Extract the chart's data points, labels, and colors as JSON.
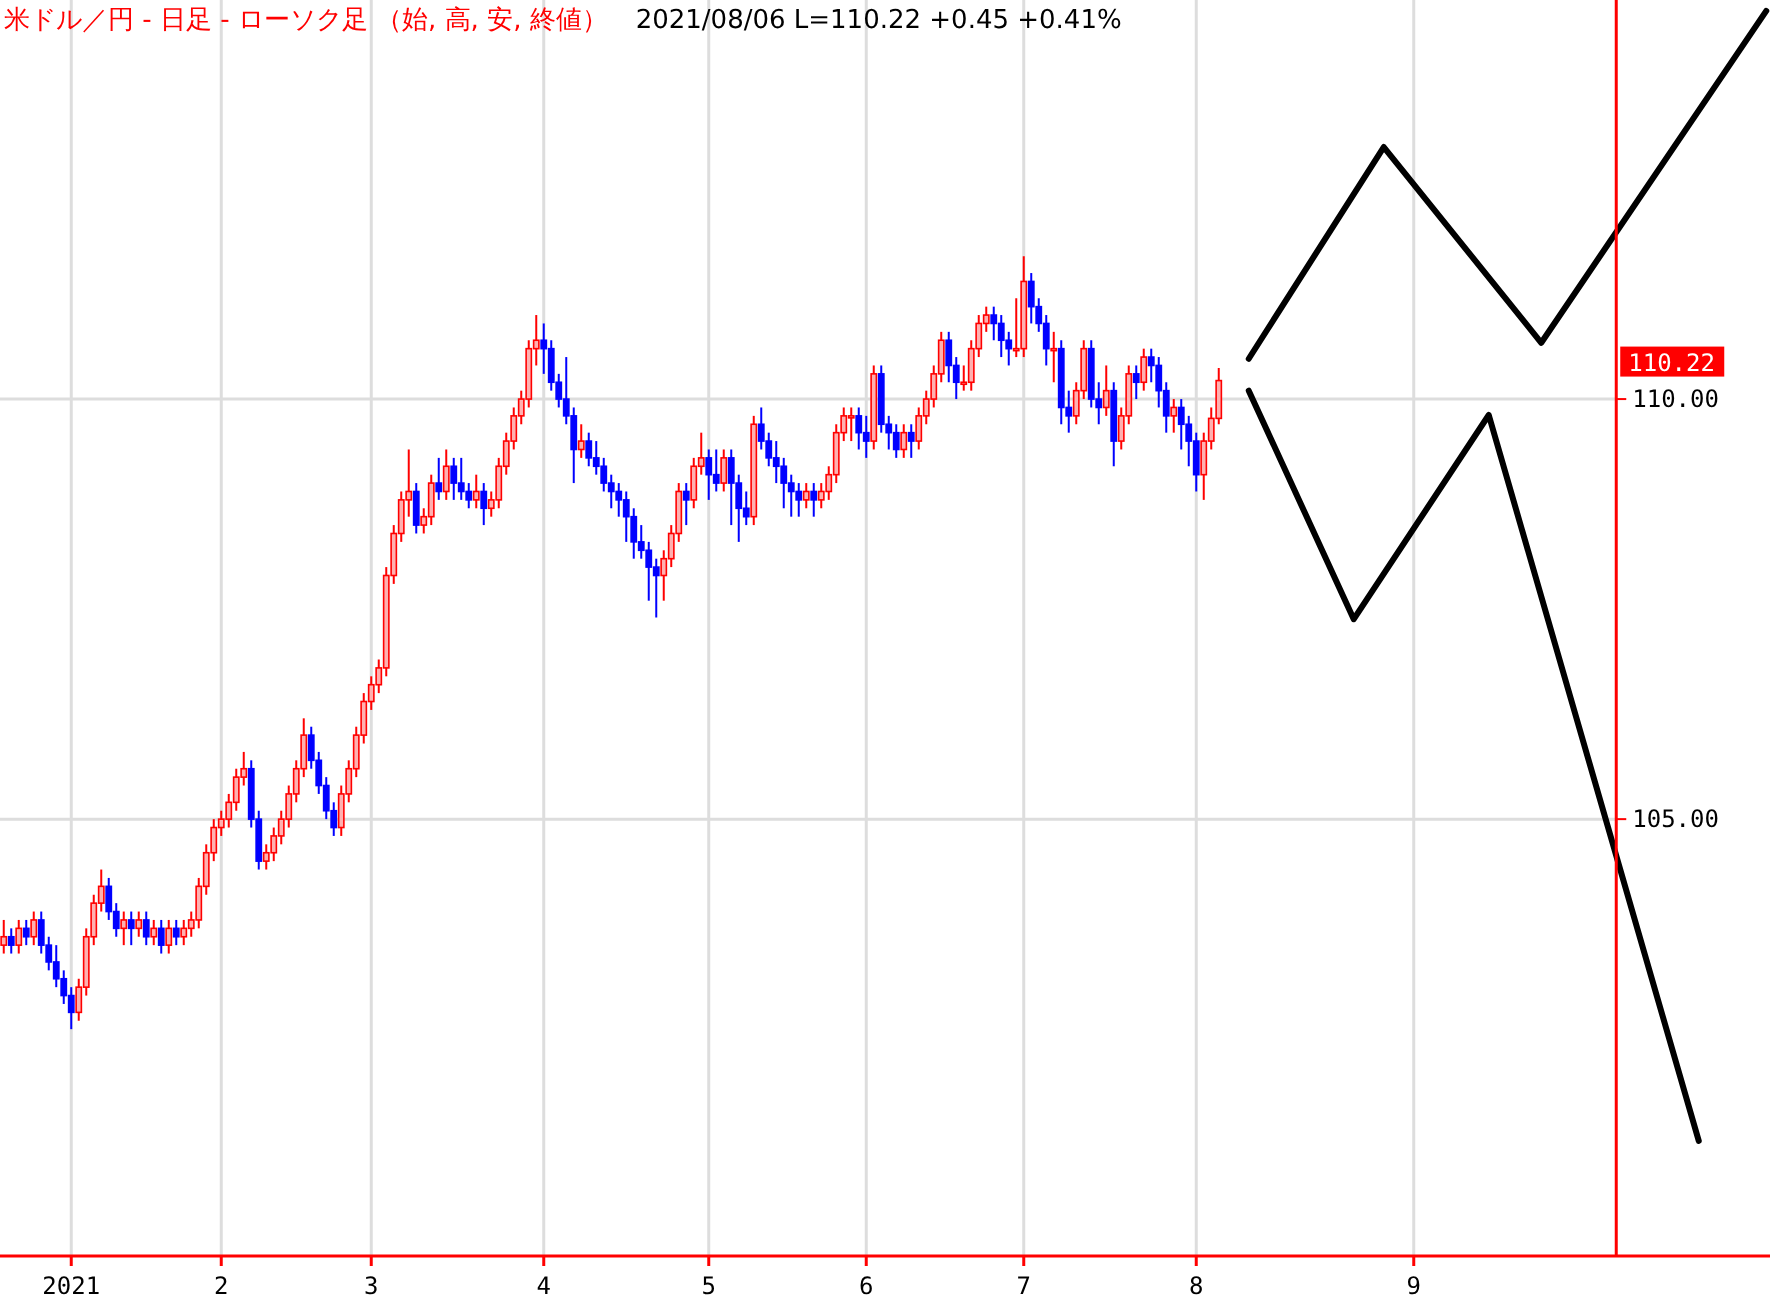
{
  "chart_data": {
    "type": "candlestick",
    "title": "米ドル／円 - 日足 - ローソク足 （始, 高, 安, 終値）",
    "subtitle": "2021/08/06 L=110.22 +0.45 +0.41%",
    "categories": [
      null,
      null,
      null,
      null,
      null,
      null,
      null,
      null,
      null,
      "2021",
      null,
      null,
      null,
      null,
      null,
      null,
      null,
      null,
      null,
      null,
      null,
      null,
      null,
      null,
      null,
      null,
      null,
      null,
      null,
      "2",
      null,
      null,
      null,
      null,
      null,
      null,
      null,
      null,
      null,
      null,
      null,
      null,
      null,
      null,
      null,
      null,
      null,
      null,
      null,
      "3",
      null,
      null,
      null,
      null,
      null,
      null,
      null,
      null,
      null,
      null,
      null,
      null,
      null,
      null,
      null,
      null,
      null,
      null,
      null,
      null,
      null,
      null,
      "4",
      null,
      null,
      null,
      null,
      null,
      null,
      null,
      null,
      null,
      null,
      null,
      null,
      null,
      null,
      null,
      null,
      null,
      null,
      null,
      null,
      null,
      "5",
      null,
      null,
      null,
      null,
      null,
      null,
      null,
      null,
      null,
      null,
      null,
      null,
      null,
      null,
      null,
      null,
      null,
      null,
      null,
      null,
      "6",
      null,
      null,
      null,
      null,
      null,
      null,
      null,
      null,
      null,
      null,
      null,
      null,
      null,
      null,
      null,
      null,
      null,
      null,
      null,
      null,
      "7",
      null,
      null,
      null,
      null,
      null,
      null,
      null,
      null,
      null,
      null,
      null,
      null,
      null,
      null,
      null,
      null,
      null,
      null,
      null,
      null,
      null,
      null,
      "8",
      null,
      null,
      null,
      null,
      null,
      null,
      null,
      null,
      null,
      null,
      null,
      null,
      null,
      null,
      null,
      null,
      null,
      null,
      null,
      null,
      null,
      null,
      null,
      null,
      null,
      null,
      null,
      null,
      "9",
      null,
      null,
      null,
      null,
      null,
      null,
      null,
      null,
      null,
      null,
      null,
      null,
      null,
      null,
      null,
      null,
      null,
      null,
      null,
      null,
      null,
      null,
      null,
      null,
      null,
      null,
      null,
      null,
      null,
      null,
      null,
      null,
      null,
      null,
      null,
      null,
      null,
      null,
      null,
      null,
      null,
      null,
      null,
      null,
      null,
      null,
      null
    ],
    "ohlc": [
      [
        103.5,
        103.8,
        103.4,
        103.6
      ],
      [
        103.6,
        103.7,
        103.4,
        103.5
      ],
      [
        103.5,
        103.8,
        103.4,
        103.7
      ],
      [
        103.7,
        103.8,
        103.5,
        103.6
      ],
      [
        103.6,
        103.9,
        103.5,
        103.8
      ],
      [
        103.8,
        103.9,
        103.4,
        103.5
      ],
      [
        103.5,
        103.6,
        103.2,
        103.3
      ],
      [
        103.3,
        103.5,
        103.0,
        103.1
      ],
      [
        103.1,
        103.2,
        102.8,
        102.9
      ],
      [
        102.9,
        103.0,
        102.5,
        102.7
      ],
      [
        102.7,
        103.1,
        102.6,
        103.0
      ],
      [
        103.0,
        103.7,
        102.9,
        103.6
      ],
      [
        103.6,
        104.1,
        103.5,
        104.0
      ],
      [
        104.0,
        104.4,
        103.9,
        104.2
      ],
      [
        104.2,
        104.3,
        103.8,
        103.9
      ],
      [
        103.9,
        104.0,
        103.6,
        103.7
      ],
      [
        103.7,
        103.9,
        103.5,
        103.8
      ],
      [
        103.8,
        103.9,
        103.5,
        103.7
      ],
      [
        103.7,
        103.9,
        103.6,
        103.8
      ],
      [
        103.8,
        103.9,
        103.5,
        103.6
      ],
      [
        103.6,
        103.8,
        103.5,
        103.7
      ],
      [
        103.7,
        103.8,
        103.4,
        103.5
      ],
      [
        103.5,
        103.8,
        103.4,
        103.7
      ],
      [
        103.7,
        103.8,
        103.5,
        103.6
      ],
      [
        103.6,
        103.8,
        103.5,
        103.7
      ],
      [
        103.7,
        103.9,
        103.6,
        103.8
      ],
      [
        103.8,
        104.3,
        103.7,
        104.2
      ],
      [
        104.2,
        104.7,
        104.1,
        104.6
      ],
      [
        104.6,
        105.0,
        104.5,
        104.9
      ],
      [
        104.9,
        105.1,
        104.8,
        105.0
      ],
      [
        105.0,
        105.3,
        104.9,
        105.2
      ],
      [
        105.2,
        105.6,
        105.1,
        105.5
      ],
      [
        105.5,
        105.8,
        105.4,
        105.6
      ],
      [
        105.6,
        105.7,
        104.9,
        105.0
      ],
      [
        105.0,
        105.1,
        104.4,
        104.5
      ],
      [
        104.5,
        104.7,
        104.4,
        104.6
      ],
      [
        104.6,
        104.9,
        104.5,
        104.8
      ],
      [
        104.8,
        105.1,
        104.7,
        105.0
      ],
      [
        105.0,
        105.4,
        104.9,
        105.3
      ],
      [
        105.3,
        105.7,
        105.2,
        105.6
      ],
      [
        105.6,
        106.2,
        105.5,
        106.0
      ],
      [
        106.0,
        106.1,
        105.6,
        105.7
      ],
      [
        105.7,
        105.8,
        105.3,
        105.4
      ],
      [
        105.4,
        105.5,
        105.0,
        105.1
      ],
      [
        105.1,
        105.2,
        104.8,
        104.9
      ],
      [
        104.9,
        105.4,
        104.8,
        105.3
      ],
      [
        105.3,
        105.7,
        105.2,
        105.6
      ],
      [
        105.6,
        106.1,
        105.5,
        106.0
      ],
      [
        106.0,
        106.5,
        105.9,
        106.4
      ],
      [
        106.4,
        106.7,
        106.3,
        106.6
      ],
      [
        106.6,
        106.9,
        106.5,
        106.8
      ],
      [
        106.8,
        108.0,
        106.7,
        107.9
      ],
      [
        107.9,
        108.5,
        107.8,
        108.4
      ],
      [
        108.4,
        108.9,
        108.3,
        108.8
      ],
      [
        108.8,
        109.4,
        108.6,
        108.9
      ],
      [
        108.9,
        109.0,
        108.4,
        108.5
      ],
      [
        108.5,
        108.7,
        108.4,
        108.6
      ],
      [
        108.6,
        109.1,
        108.5,
        109.0
      ],
      [
        109.0,
        109.3,
        108.8,
        108.9
      ],
      [
        108.9,
        109.4,
        108.8,
        109.2
      ],
      [
        109.2,
        109.3,
        108.8,
        109.0
      ],
      [
        109.0,
        109.3,
        108.8,
        108.9
      ],
      [
        108.9,
        109.0,
        108.7,
        108.8
      ],
      [
        108.8,
        109.1,
        108.7,
        108.9
      ],
      [
        108.9,
        109.0,
        108.5,
        108.7
      ],
      [
        108.7,
        108.9,
        108.6,
        108.8
      ],
      [
        108.8,
        109.3,
        108.7,
        109.2
      ],
      [
        109.2,
        109.6,
        109.1,
        109.5
      ],
      [
        109.5,
        109.9,
        109.4,
        109.8
      ],
      [
        109.8,
        110.1,
        109.7,
        110.0
      ],
      [
        110.0,
        110.7,
        109.9,
        110.6
      ],
      [
        110.6,
        111.0,
        110.4,
        110.7
      ],
      [
        110.7,
        110.9,
        110.3,
        110.6
      ],
      [
        110.6,
        110.7,
        110.1,
        110.2
      ],
      [
        110.2,
        110.3,
        109.9,
        110.0
      ],
      [
        110.0,
        110.5,
        109.7,
        109.8
      ],
      [
        109.8,
        109.9,
        109.0,
        109.4
      ],
      [
        109.4,
        109.7,
        109.3,
        109.5
      ],
      [
        109.5,
        109.6,
        109.2,
        109.3
      ],
      [
        109.3,
        109.5,
        109.1,
        109.2
      ],
      [
        109.2,
        109.3,
        108.9,
        109.0
      ],
      [
        109.0,
        109.1,
        108.7,
        108.9
      ],
      [
        108.9,
        109.0,
        108.6,
        108.8
      ],
      [
        108.8,
        108.9,
        108.3,
        108.6
      ],
      [
        108.6,
        108.7,
        108.1,
        108.3
      ],
      [
        108.3,
        108.5,
        108.1,
        108.2
      ],
      [
        108.2,
        108.3,
        107.6,
        108.0
      ],
      [
        108.0,
        108.1,
        107.4,
        107.9
      ],
      [
        107.9,
        108.2,
        107.6,
        108.1
      ],
      [
        108.1,
        108.5,
        108.0,
        108.4
      ],
      [
        108.4,
        109.0,
        108.3,
        108.9
      ],
      [
        108.9,
        109.0,
        108.5,
        108.8
      ],
      [
        108.8,
        109.3,
        108.7,
        109.2
      ],
      [
        109.2,
        109.6,
        109.1,
        109.3
      ],
      [
        109.3,
        109.4,
        108.8,
        109.1
      ],
      [
        109.1,
        109.4,
        108.9,
        109.0
      ],
      [
        109.0,
        109.4,
        108.9,
        109.3
      ],
      [
        109.3,
        109.4,
        108.5,
        109.0
      ],
      [
        109.0,
        109.1,
        108.3,
        108.7
      ],
      [
        108.7,
        108.9,
        108.5,
        108.6
      ],
      [
        108.6,
        109.8,
        108.5,
        109.7
      ],
      [
        109.7,
        109.9,
        109.4,
        109.5
      ],
      [
        109.5,
        109.6,
        109.2,
        109.3
      ],
      [
        109.3,
        109.5,
        109.0,
        109.2
      ],
      [
        109.2,
        109.3,
        108.7,
        109.0
      ],
      [
        109.0,
        109.1,
        108.6,
        108.9
      ],
      [
        108.9,
        109.0,
        108.6,
        108.8
      ],
      [
        108.8,
        109.0,
        108.7,
        108.9
      ],
      [
        108.9,
        109.0,
        108.6,
        108.8
      ],
      [
        108.8,
        109.0,
        108.7,
        108.9
      ],
      [
        108.9,
        109.2,
        108.8,
        109.1
      ],
      [
        109.1,
        109.7,
        109.0,
        109.6
      ],
      [
        109.6,
        109.9,
        109.5,
        109.8
      ],
      [
        109.8,
        109.9,
        109.5,
        109.8
      ],
      [
        109.8,
        109.9,
        109.4,
        109.6
      ],
      [
        109.6,
        109.8,
        109.3,
        109.5
      ],
      [
        109.5,
        110.4,
        109.4,
        110.3
      ],
      [
        110.3,
        110.4,
        109.6,
        109.7
      ],
      [
        109.7,
        109.8,
        109.4,
        109.6
      ],
      [
        109.6,
        109.7,
        109.3,
        109.4
      ],
      [
        109.4,
        109.7,
        109.3,
        109.6
      ],
      [
        109.6,
        109.7,
        109.3,
        109.5
      ],
      [
        109.5,
        109.9,
        109.4,
        109.8
      ],
      [
        109.8,
        110.1,
        109.7,
        110.0
      ],
      [
        110.0,
        110.4,
        109.9,
        110.3
      ],
      [
        110.3,
        110.8,
        110.2,
        110.7
      ],
      [
        110.7,
        110.8,
        110.2,
        110.4
      ],
      [
        110.4,
        110.5,
        110.0,
        110.2
      ],
      [
        110.2,
        110.4,
        110.1,
        110.2
      ],
      [
        110.2,
        110.7,
        110.1,
        110.6
      ],
      [
        110.6,
        111.0,
        110.5,
        110.9
      ],
      [
        110.9,
        111.1,
        110.8,
        111.0
      ],
      [
        111.0,
        111.1,
        110.7,
        110.9
      ],
      [
        110.9,
        111.0,
        110.5,
        110.7
      ],
      [
        110.7,
        110.8,
        110.4,
        110.6
      ],
      [
        110.6,
        111.2,
        110.5,
        110.6
      ],
      [
        110.6,
        111.7,
        110.5,
        111.4
      ],
      [
        111.4,
        111.5,
        110.9,
        111.1
      ],
      [
        111.1,
        111.2,
        110.8,
        110.9
      ],
      [
        110.9,
        111.0,
        110.4,
        110.6
      ],
      [
        110.6,
        110.8,
        110.2,
        110.6
      ],
      [
        110.6,
        110.7,
        109.7,
        109.9
      ],
      [
        109.9,
        110.1,
        109.6,
        109.8
      ],
      [
        109.8,
        110.2,
        109.7,
        110.1
      ],
      [
        110.1,
        110.7,
        110.0,
        110.6
      ],
      [
        110.6,
        110.7,
        109.9,
        110.0
      ],
      [
        110.0,
        110.2,
        109.7,
        109.9
      ],
      [
        109.9,
        110.4,
        109.8,
        110.1
      ],
      [
        110.1,
        110.2,
        109.2,
        109.5
      ],
      [
        109.5,
        109.9,
        109.4,
        109.8
      ],
      [
        109.8,
        110.4,
        109.7,
        110.3
      ],
      [
        110.3,
        110.4,
        110.0,
        110.2
      ],
      [
        110.2,
        110.6,
        110.1,
        110.5
      ],
      [
        110.5,
        110.6,
        110.2,
        110.4
      ],
      [
        110.4,
        110.5,
        109.9,
        110.1
      ],
      [
        110.1,
        110.2,
        109.6,
        109.8
      ],
      [
        109.8,
        110.0,
        109.6,
        109.9
      ],
      [
        109.9,
        110.0,
        109.4,
        109.7
      ],
      [
        109.7,
        109.8,
        109.2,
        109.5
      ],
      [
        109.5,
        109.6,
        108.9,
        109.1
      ],
      [
        109.1,
        109.6,
        108.8,
        109.5
      ],
      [
        109.5,
        109.9,
        109.4,
        109.77
      ],
      [
        109.77,
        110.37,
        109.7,
        110.22
      ],
      null,
      null,
      null,
      null,
      null,
      null,
      null,
      null,
      null,
      null,
      null,
      null,
      null,
      null,
      null,
      null,
      null,
      null,
      null,
      null,
      null,
      null,
      null,
      null,
      null,
      null,
      null,
      null,
      null,
      null,
      null,
      null,
      null,
      null,
      null,
      null,
      null,
      null,
      null,
      null,
      null,
      null,
      null,
      null,
      null,
      null,
      null,
      null,
      null,
      null,
      null,
      null,
      null,
      null,
      null,
      null,
      null,
      null,
      null,
      null,
      null,
      null,
      null,
      null,
      null,
      null,
      null,
      null,
      null,
      null,
      null,
      null,
      null
    ],
    "series": [
      {
        "type": "line",
        "color": "#000000",
        "values": [
          null,
          null,
          null,
          null,
          null,
          null,
          null,
          null,
          null,
          null,
          null,
          null,
          null,
          null,
          null,
          null,
          null,
          null,
          null,
          null,
          null,
          null,
          null,
          null,
          null,
          null,
          null,
          null,
          null,
          null,
          null,
          null,
          null,
          null,
          null,
          null,
          null,
          null,
          null,
          null,
          null,
          null,
          null,
          null,
          null,
          null,
          null,
          null,
          null,
          null,
          null,
          null,
          null,
          null,
          null,
          null,
          null,
          null,
          null,
          null,
          null,
          null,
          null,
          null,
          null,
          null,
          null,
          null,
          null,
          null,
          null,
          null,
          null,
          null,
          null,
          null,
          null,
          null,
          null,
          null,
          null,
          null,
          null,
          null,
          null,
          null,
          null,
          null,
          null,
          null,
          null,
          null,
          null,
          null,
          null,
          null,
          null,
          null,
          null,
          null,
          null,
          null,
          null,
          null,
          null,
          null,
          null,
          null,
          null,
          null,
          null,
          null,
          null,
          null,
          null,
          null,
          null,
          null,
          null,
          null,
          null,
          null,
          null,
          null,
          null,
          null,
          null,
          null,
          null,
          null,
          null,
          null,
          null,
          null,
          null,
          null,
          null,
          null,
          null,
          null,
          null,
          null,
          null,
          null,
          null,
          null,
          null,
          null,
          null,
          null,
          null,
          null,
          null,
          null,
          null,
          null,
          null,
          null,
          null,
          null,
          null,
          null,
          null,
          null,
          null,
          null,
          110.48,
          null,
          null,
          null,
          null,
          null,
          null,
          null,
          null,
          null,
          null,
          null,
          null,
          null,
          null,
          null,
          null,
          null,
          113.0,
          null,
          null,
          null,
          null,
          null,
          null,
          null,
          null,
          null,
          null,
          null,
          null,
          null,
          null,
          null,
          null,
          null,
          null,
          null,
          null,
          110.67,
          null,
          null,
          null,
          null,
          null,
          null,
          null,
          null,
          null,
          null,
          null,
          null,
          null,
          null,
          null,
          null,
          null,
          null,
          null,
          null,
          null,
          null,
          null,
          null,
          null,
          null,
          null,
          null,
          null,
          114.62
        ]
      },
      {
        "type": "line",
        "color": "#000000",
        "values": [
          null,
          null,
          null,
          null,
          null,
          null,
          null,
          null,
          null,
          null,
          null,
          null,
          null,
          null,
          null,
          null,
          null,
          null,
          null,
          null,
          null,
          null,
          null,
          null,
          null,
          null,
          null,
          null,
          null,
          null,
          null,
          null,
          null,
          null,
          null,
          null,
          null,
          null,
          null,
          null,
          null,
          null,
          null,
          null,
          null,
          null,
          null,
          null,
          null,
          null,
          null,
          null,
          null,
          null,
          null,
          null,
          null,
          null,
          null,
          null,
          null,
          null,
          null,
          null,
          null,
          null,
          null,
          null,
          null,
          null,
          null,
          null,
          null,
          null,
          null,
          null,
          null,
          null,
          null,
          null,
          null,
          null,
          null,
          null,
          null,
          null,
          null,
          null,
          null,
          null,
          null,
          null,
          null,
          null,
          null,
          null,
          null,
          null,
          null,
          null,
          null,
          null,
          null,
          null,
          null,
          null,
          null,
          null,
          null,
          null,
          null,
          null,
          null,
          null,
          null,
          null,
          null,
          null,
          null,
          null,
          null,
          null,
          null,
          null,
          null,
          null,
          null,
          null,
          null,
          null,
          null,
          null,
          null,
          null,
          null,
          null,
          null,
          null,
          null,
          null,
          null,
          null,
          null,
          null,
          null,
          null,
          null,
          null,
          null,
          null,
          null,
          null,
          null,
          null,
          null,
          null,
          null,
          null,
          null,
          null,
          null,
          null,
          null,
          null,
          null,
          null,
          110.1,
          null,
          null,
          null,
          null,
          null,
          null,
          null,
          null,
          null,
          null,
          null,
          null,
          null,
          107.38,
          null,
          null,
          null,
          null,
          null,
          null,
          null,
          null,
          null,
          null,
          null,
          null,
          null,
          null,
          null,
          null,
          null,
          109.81,
          null,
          null,
          null,
          null,
          null,
          null,
          null,
          null,
          null,
          null,
          null,
          null,
          null,
          null,
          null,
          null,
          null,
          null,
          null,
          null,
          null,
          null,
          null,
          null,
          null,
          null,
          null,
          101.17,
          null,
          null,
          null,
          null,
          null,
          null,
          null,
          null,
          null
        ]
      }
    ],
    "ylim": [
      99.8,
      114.75
    ],
    "yticks": [
      {
        "value": 105,
        "label": "105.00"
      },
      {
        "value": 110,
        "label": "110.00"
      }
    ],
    "annotations": [
      "110.22"
    ],
    "grid": true
  }
}
